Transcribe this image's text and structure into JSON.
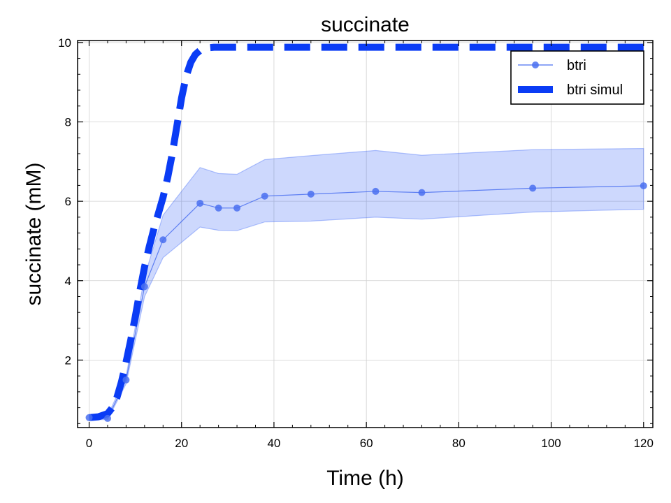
{
  "chart_data": {
    "type": "line",
    "title": "succinate",
    "xlabel": "Time (h)",
    "ylabel": "succinate (mM)",
    "xlim": [
      -2.5,
      122
    ],
    "ylim": [
      0.3,
      10.05
    ],
    "xticks": [
      0,
      20,
      40,
      60,
      80,
      100,
      120
    ],
    "yticks": [
      2,
      4,
      6,
      8,
      10
    ],
    "grid": true,
    "legend_position": "top-right",
    "series": [
      {
        "name": "btri",
        "style": "line-markers",
        "color": "#4a70f0",
        "x": [
          0,
          4,
          8,
          12,
          16,
          24,
          28,
          32,
          38,
          48,
          62,
          72,
          96,
          120
        ],
        "y": [
          0.55,
          0.53,
          1.5,
          3.85,
          5.03,
          5.95,
          5.83,
          5.83,
          6.13,
          6.18,
          6.25,
          6.22,
          6.33,
          6.39
        ],
        "upper": [
          0.6,
          0.6,
          1.6,
          4.1,
          5.65,
          6.85,
          6.7,
          6.68,
          7.05,
          7.15,
          7.28,
          7.16,
          7.3,
          7.33
        ],
        "lower": [
          0.5,
          0.5,
          1.4,
          3.6,
          4.58,
          5.35,
          5.27,
          5.26,
          5.48,
          5.5,
          5.6,
          5.55,
          5.73,
          5.8
        ]
      },
      {
        "name": "btri simul",
        "style": "dashed",
        "color": "#0a3cf5",
        "x": [
          0,
          2,
          4,
          5,
          6,
          7,
          8,
          9,
          10,
          11,
          12,
          13,
          14,
          15,
          16,
          17,
          18,
          19,
          20,
          21,
          22,
          23,
          24,
          25,
          26,
          27,
          28,
          30,
          40,
          60,
          80,
          100,
          120
        ],
        "y": [
          0.55,
          0.57,
          0.65,
          0.8,
          1.05,
          1.45,
          1.95,
          2.5,
          3.1,
          3.75,
          4.35,
          4.85,
          5.3,
          5.7,
          6.1,
          6.6,
          7.2,
          7.9,
          8.6,
          9.15,
          9.5,
          9.7,
          9.8,
          9.85,
          9.87,
          9.88,
          9.88,
          9.88,
          9.88,
          9.88,
          9.88,
          9.88,
          9.88
        ]
      }
    ]
  }
}
